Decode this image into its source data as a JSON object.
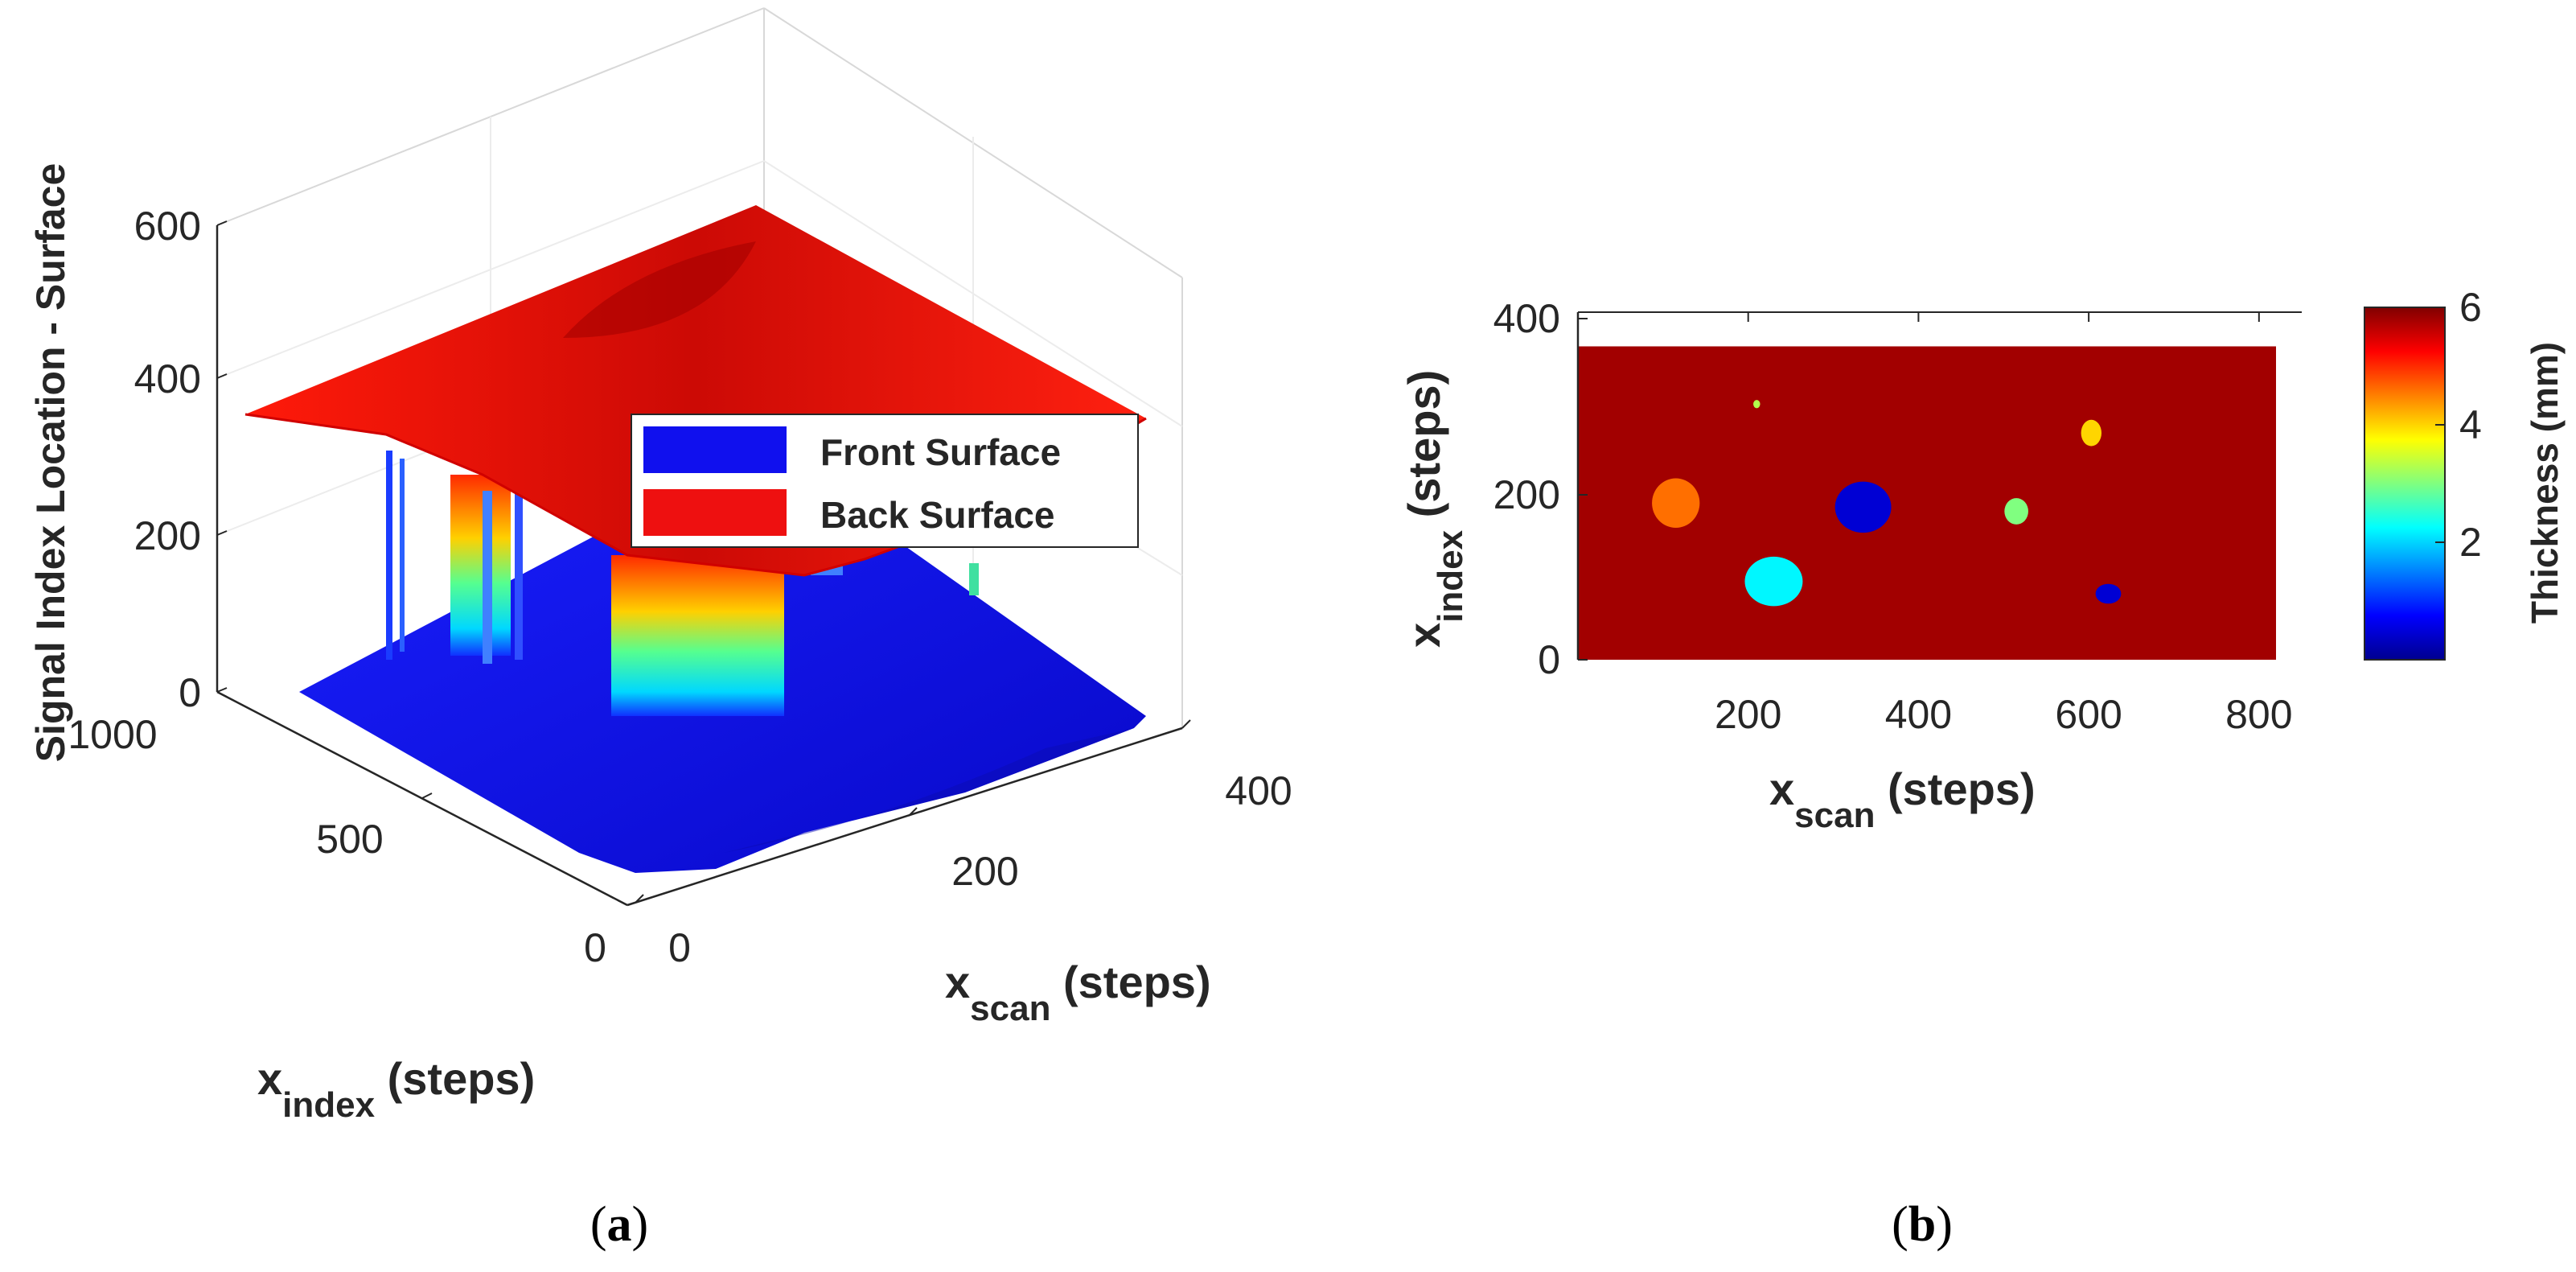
{
  "chart_data": [
    {
      "panel": "a",
      "type": "surface3d",
      "zlabel": "Signal Index Location - Surface",
      "xlabel_main": "x",
      "xlabel_sub": "index",
      "xlabel_unit": " (steps)",
      "ylabel_main": "x",
      "ylabel_sub": "scan",
      "ylabel_unit": " (steps)",
      "z_ticks": [
        "0",
        "200",
        "400",
        "600"
      ],
      "x_index_ticks": [
        "0",
        "500",
        "1000"
      ],
      "x_scan_ticks": [
        "0",
        "200",
        "400"
      ],
      "zlim": [
        0,
        600
      ],
      "x_index_range": [
        0,
        1000
      ],
      "x_scan_range": [
        0,
        400
      ],
      "series": [
        {
          "name": "Front Surface",
          "color": "#1010ee",
          "approx_level": 0
        },
        {
          "name": "Back Surface",
          "color": "#ee1010",
          "approx_level": 400
        }
      ],
      "legend": [
        {
          "label": "Front Surface",
          "color": "#1010ee"
        },
        {
          "label": "Back Surface",
          "color": "#ee1010"
        }
      ],
      "legend_position": "center-right"
    },
    {
      "panel": "b",
      "type": "heatmap",
      "xlabel_main": "x",
      "xlabel_sub": "scan",
      "xlabel_unit": " (steps)",
      "ylabel_main": "x",
      "ylabel_sub": "index",
      "ylabel_unit": " (steps)",
      "x_ticks": [
        "200",
        "400",
        "600",
        "800"
      ],
      "y_ticks": [
        "0",
        "200",
        "400"
      ],
      "xlim": [
        0,
        820
      ],
      "ylim": [
        0,
        400
      ],
      "colorbar_label": "Thickness (mm)",
      "colorbar_ticks": [
        "2",
        "4",
        "6"
      ],
      "colorbar_range": [
        0,
        6
      ],
      "background_value": 5.8,
      "defects": [
        {
          "x": 115,
          "y": 190,
          "value": 4.6,
          "rx": 28,
          "ry": 30
        },
        {
          "x": 335,
          "y": 185,
          "value": 0.5,
          "rx": 33,
          "ry": 31
        },
        {
          "x": 230,
          "y": 95,
          "value": 2.2,
          "rx": 34,
          "ry": 30
        },
        {
          "x": 515,
          "y": 180,
          "value": 3.0,
          "rx": 14,
          "ry": 16
        },
        {
          "x": 603,
          "y": 275,
          "value": 4.0,
          "rx": 12,
          "ry": 16
        },
        {
          "x": 623,
          "y": 80,
          "value": 0.5,
          "rx": 15,
          "ry": 12
        },
        {
          "x": 210,
          "y": 310,
          "value": 3.3,
          "rx": 4,
          "ry": 5
        }
      ]
    }
  ],
  "labels": {
    "panel_a": "(a)",
    "panel_b": "(b)"
  }
}
